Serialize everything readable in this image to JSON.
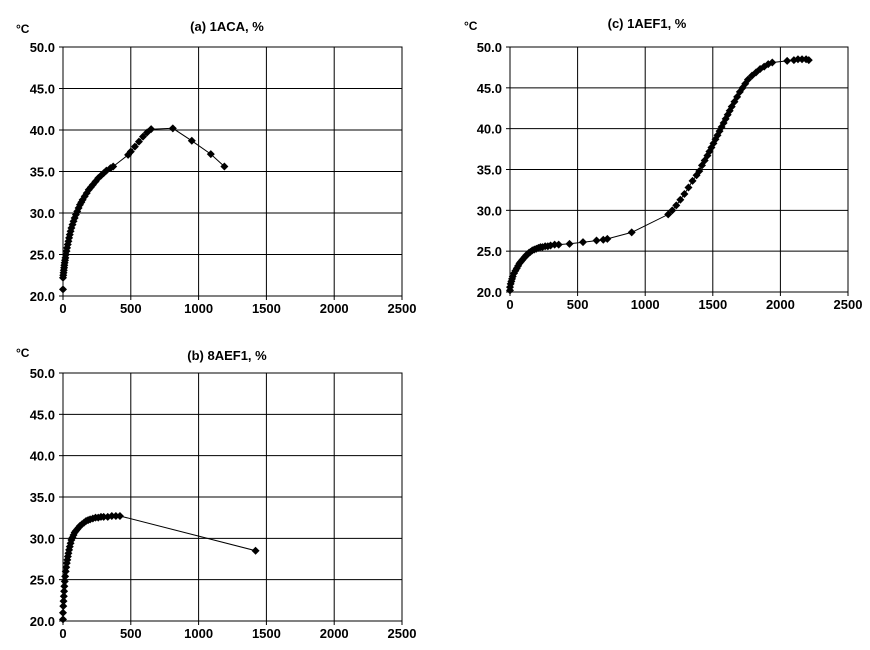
{
  "chart_data": [
    {
      "type": "scatter",
      "title": "(a) 1ACA, %",
      "ylabel": "°C",
      "xlabel": "",
      "xlim": [
        0,
        2500
      ],
      "ylim": [
        20.0,
        50.0
      ],
      "xticks": [
        "0",
        "500",
        "1000",
        "1500",
        "2000",
        "2500"
      ],
      "yticks": [
        "20.0",
        "25.0",
        "30.0",
        "35.0",
        "40.0",
        "45.0",
        "50.0"
      ],
      "grid": true,
      "series": [
        {
          "x": [
            0,
            0,
            2,
            4,
            6,
            8,
            10,
            12,
            15,
            18,
            22,
            26,
            30,
            35,
            40,
            45,
            50,
            56,
            62,
            70,
            78,
            86,
            95,
            105,
            115,
            125,
            135,
            145,
            160,
            175,
            190,
            205,
            220,
            240,
            260,
            280,
            300,
            320,
            350,
            370,
            480,
            500,
            530,
            560,
            590,
            620,
            650,
            810,
            950,
            1090,
            1190
          ],
          "y": [
            20.8,
            22.2,
            22.5,
            22.8,
            23.1,
            23.4,
            23.7,
            24.0,
            24.3,
            24.6,
            25.0,
            25.4,
            25.8,
            26.2,
            26.6,
            27.0,
            27.4,
            27.8,
            28.2,
            28.6,
            29.0,
            29.4,
            29.8,
            30.2,
            30.6,
            31.0,
            31.3,
            31.6,
            32.0,
            32.4,
            32.8,
            33.1,
            33.4,
            33.8,
            34.2,
            34.5,
            34.8,
            35.1,
            35.4,
            35.6,
            37.0,
            37.4,
            38.0,
            38.6,
            39.2,
            39.7,
            40.1,
            40.2,
            38.7,
            37.1,
            35.6
          ]
        }
      ]
    },
    {
      "type": "scatter",
      "title": "(b) 8AEF1, %",
      "ylabel": "°C",
      "xlabel": "",
      "xlim": [
        0,
        2500
      ],
      "ylim": [
        20.0,
        50.0
      ],
      "xticks": [
        "0",
        "500",
        "1000",
        "1500",
        "2000",
        "2500"
      ],
      "yticks": [
        "20.0",
        "25.0",
        "30.0",
        "35.0",
        "40.0",
        "45.0",
        "50.0"
      ],
      "grid": true,
      "series": [
        {
          "x": [
            0,
            0,
            2,
            4,
            6,
            8,
            10,
            13,
            16,
            20,
            24,
            28,
            32,
            36,
            40,
            45,
            50,
            56,
            62,
            70,
            78,
            86,
            95,
            105,
            115,
            125,
            140,
            155,
            170,
            185,
            200,
            220,
            240,
            260,
            280,
            300,
            330,
            360,
            390,
            420,
            1420
          ],
          "y": [
            20.2,
            21.0,
            21.8,
            22.4,
            23.0,
            23.6,
            24.2,
            24.8,
            25.4,
            26.0,
            26.5,
            27.0,
            27.4,
            27.8,
            28.2,
            28.6,
            29.0,
            29.4,
            29.8,
            30.1,
            30.4,
            30.7,
            30.9,
            31.1,
            31.3,
            31.5,
            31.7,
            31.9,
            32.1,
            32.2,
            32.3,
            32.4,
            32.5,
            32.5,
            32.6,
            32.6,
            32.6,
            32.7,
            32.7,
            32.7,
            28.5
          ]
        }
      ]
    },
    {
      "type": "scatter",
      "title": "(c) 1AEF1, %",
      "ylabel": "°C",
      "xlabel": "",
      "xlim": [
        0,
        2500
      ],
      "ylim": [
        20.0,
        50.0
      ],
      "xticks": [
        "0",
        "500",
        "1000",
        "1500",
        "2000",
        "2500"
      ],
      "yticks": [
        "20.0",
        "25.0",
        "30.0",
        "35.0",
        "40.0",
        "45.0",
        "50.0"
      ],
      "grid": true,
      "series": [
        {
          "x": [
            0,
            0,
            5,
            10,
            15,
            20,
            30,
            40,
            50,
            60,
            70,
            80,
            90,
            100,
            110,
            120,
            130,
            140,
            150,
            165,
            180,
            195,
            210,
            225,
            240,
            260,
            280,
            300,
            330,
            360,
            440,
            540,
            640,
            690,
            720,
            900,
            1170,
            1200,
            1230,
            1260,
            1290,
            1320,
            1350,
            1380,
            1400,
            1420,
            1440,
            1460,
            1475,
            1490,
            1505,
            1520,
            1535,
            1550,
            1565,
            1580,
            1595,
            1610,
            1625,
            1640,
            1660,
            1680,
            1700,
            1720,
            1740,
            1760,
            1790,
            1820,
            1850,
            1880,
            1910,
            1940,
            2050,
            2100,
            2130,
            2160,
            2190,
            2210
          ],
          "y": [
            20.2,
            20.6,
            21.0,
            21.3,
            21.6,
            21.9,
            22.3,
            22.6,
            22.9,
            23.2,
            23.5,
            23.7,
            23.9,
            24.1,
            24.3,
            24.5,
            24.6,
            24.8,
            24.9,
            25.1,
            25.2,
            25.3,
            25.4,
            25.5,
            25.5,
            25.6,
            25.6,
            25.7,
            25.8,
            25.8,
            25.9,
            26.1,
            26.3,
            26.4,
            26.5,
            27.3,
            29.5,
            30.0,
            30.6,
            31.3,
            32.0,
            32.8,
            33.6,
            34.3,
            34.8,
            35.5,
            36.1,
            36.7,
            37.2,
            37.7,
            38.2,
            38.7,
            39.2,
            39.7,
            40.2,
            40.7,
            41.2,
            41.7,
            42.2,
            42.7,
            43.3,
            43.9,
            44.5,
            45.0,
            45.5,
            46.0,
            46.5,
            46.9,
            47.3,
            47.6,
            47.9,
            48.1,
            48.3,
            48.4,
            48.5,
            48.5,
            48.5,
            48.4
          ]
        }
      ]
    }
  ],
  "panels": [
    {
      "unit_label": "°C"
    },
    {
      "unit_label": "°C"
    },
    {
      "unit_label": "°C"
    }
  ]
}
